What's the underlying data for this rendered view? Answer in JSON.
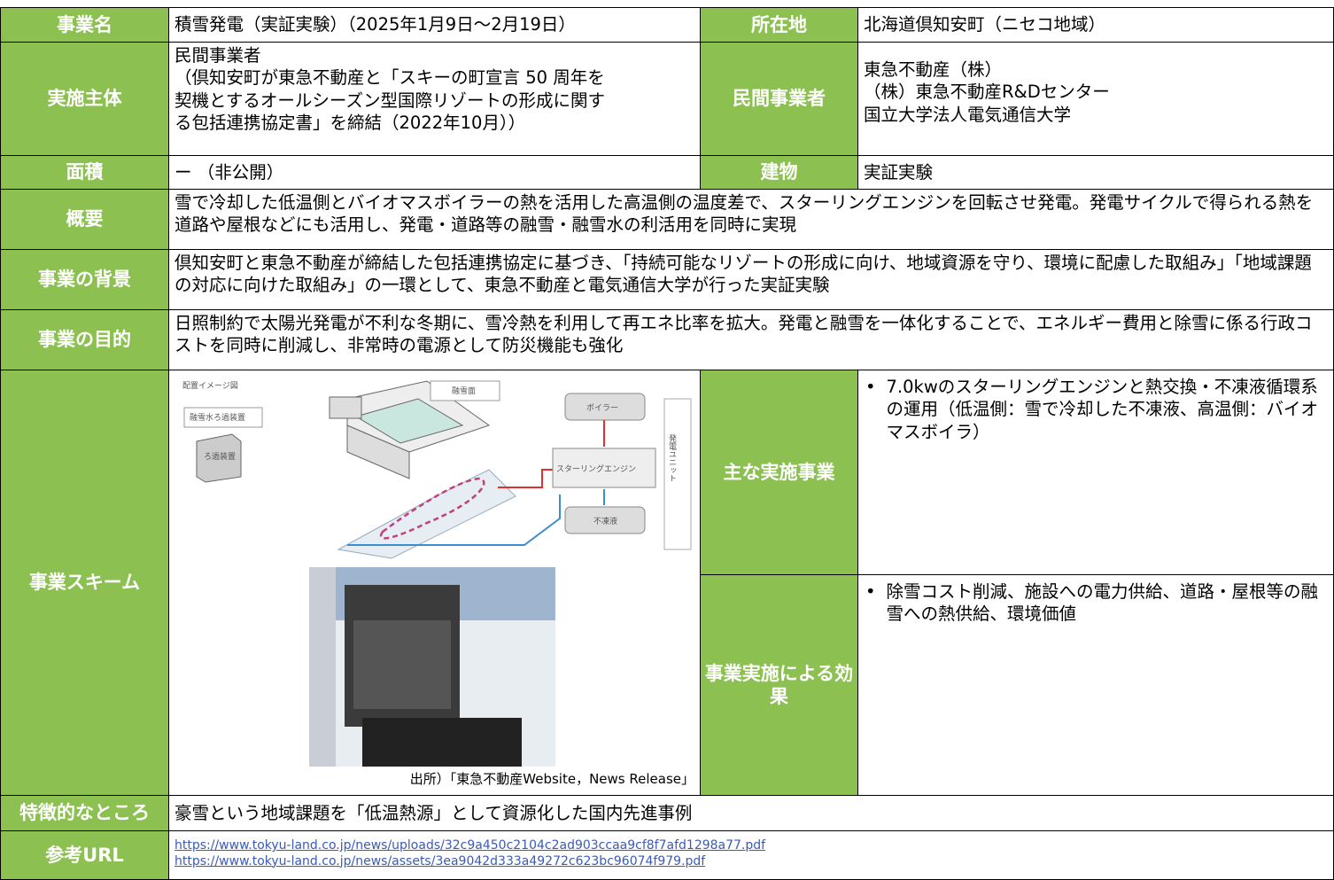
{
  "project_name": {
    "label": "事業名",
    "value": "積雪発電（実証実験）（2025年1月9日～2月19日）"
  },
  "location": {
    "label": "所在地",
    "value": "北海道倶知安町（ニセコ地域）"
  },
  "implementer": {
    "label": "実施主体",
    "lines": [
      "民間事業者",
      "（倶知安町が東急不動産と「スキーの町宣言 50 周年を",
      "契機とするオールシーズン型国際リゾートの形成に関す",
      "る包括連携協定書」を締結（2022年10月））"
    ]
  },
  "private_operator": {
    "label": "民間事業者",
    "lines": [
      "東急不動産（株）",
      "（株）東急不動産R&Dセンター",
      "国立大学法人電気通信大学"
    ]
  },
  "area": {
    "label": "面積",
    "value": "ー （非公開）"
  },
  "building": {
    "label": "建物",
    "value": "実証実験"
  },
  "overview": {
    "label": "概要",
    "value": "雪で冷却した低温側とバイオマスボイラーの熱を活用した高温側の温度差で、スターリングエンジンを回転させ発電。発電サイクルで得られる熱を道路や屋根などにも活用し、発電・道路等の融雪・融雪水の利活用を同時に実現"
  },
  "background": {
    "label": "事業の背景",
    "value": "倶知安町と東急不動産が締結した包括連携協定に基づき、「持続可能なリゾートの形成に向け、地域資源を守り、環境に配慮した取組み」「地域課題の対応に向けた取組み」の一環として、東急不動産と電気通信大学が行った実証実験"
  },
  "purpose": {
    "label": "事業の目的",
    "value": "日照制約で太陽光発電が不利な冬期に、雪冷熱を利用して再エネ比率を拡大。発電と融雪を一体化することで、エネルギー費用と除雪に係る行政コストを同時に削減し、非常時の電源として防災機能も強化"
  },
  "scheme": {
    "label": "事業スキーム",
    "diagram": {
      "title": "配置イメージ図",
      "snow_surface": "融雪面",
      "filter_title": "融雪水ろ過装置",
      "filter_box": "ろ過装置",
      "boiler": "ボイラー",
      "engine": "スターリングエンジン",
      "antifreeze": "不凍液",
      "unit": "発電ユニット"
    },
    "source": "出所）「東急不動産Website，News Release」"
  },
  "main_projects": {
    "label": "主な実施事業",
    "bullet": "7.0kwのスターリングエンジンと熱交換・不凍液循環系の運用（低温側：雪で冷却した不凍液、高温側：バイオマスボイラ）"
  },
  "effects": {
    "label": "事業実施による効果",
    "bullet": "除雪コスト削減、施設への電力供給、道路・屋根等の融雪への熱供給、環境価値"
  },
  "feature": {
    "label": "特徴的なところ",
    "value": "豪雪という地域課題を「低温熱源」として資源化した国内先進事例"
  },
  "reference_url": {
    "label": "参考URL",
    "urls": [
      "https://www.tokyu-land.co.jp/news/uploads/32c9a450c2104c2ad903ccaa9cf8f7afd1298a77.pdf",
      "https://www.tokyu-land.co.jp/news/assets/3ea9042d333a49272c623bc96074f979.pdf"
    ]
  }
}
